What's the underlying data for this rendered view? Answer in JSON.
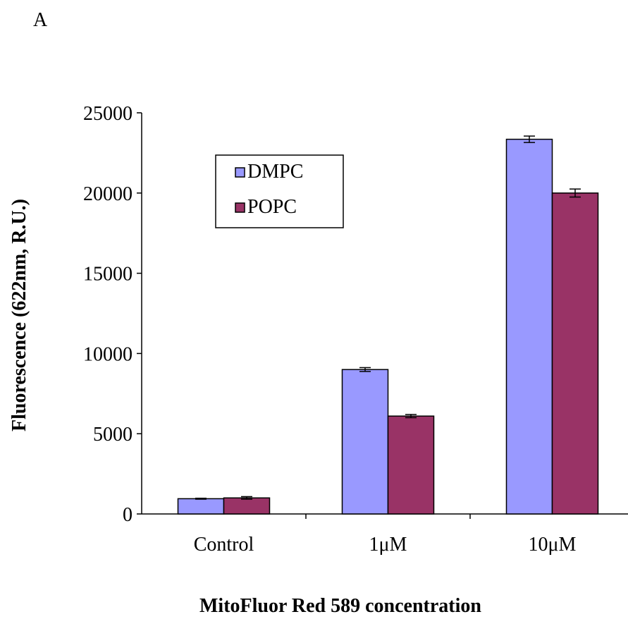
{
  "panel_label": "A",
  "colors": {
    "DMPC": "#9999ff",
    "POPC": "#993366",
    "axis": "#000000",
    "background": "#ffffff"
  },
  "chart_data": {
    "type": "bar",
    "title": "",
    "xlabel": "MitoFluor Red 589 concentration",
    "ylabel": "Fluorescence (622nm, R.U.)",
    "categories": [
      "Control",
      "1μM",
      "10μM"
    ],
    "ylim": [
      0,
      25000
    ],
    "yticks": [
      0,
      5000,
      10000,
      15000,
      20000,
      25000
    ],
    "ytick_labels": [
      "0",
      "5000",
      "10000",
      "15000",
      "20000",
      "25000"
    ],
    "grid": false,
    "legend": "top-left inside plot",
    "series": [
      {
        "name": "DMPC",
        "values": [
          950,
          9000,
          23350
        ],
        "errors": [
          30,
          120,
          200
        ]
      },
      {
        "name": "POPC",
        "values": [
          1000,
          6100,
          20000
        ],
        "errors": [
          80,
          100,
          250
        ]
      }
    ]
  }
}
